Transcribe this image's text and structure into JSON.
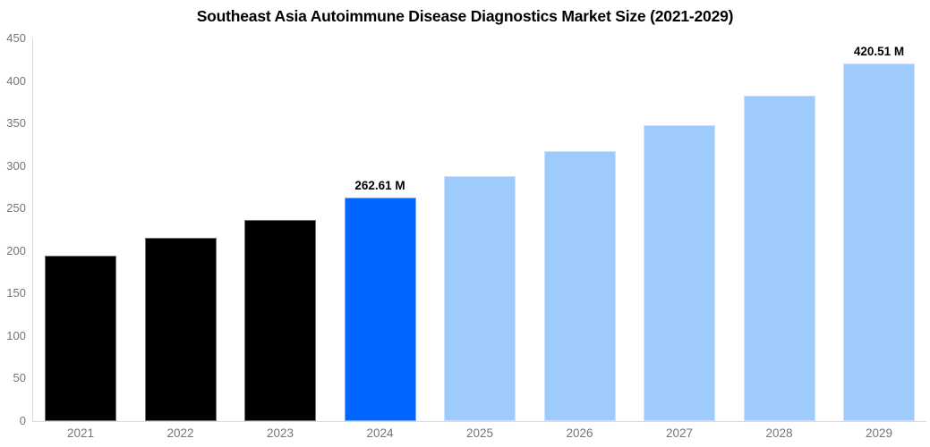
{
  "chart_data": {
    "type": "bar",
    "title": "Southeast Asia Autoimmune Disease Diagnostics Market Size (2021-2029)",
    "categories": [
      "2021",
      "2022",
      "2023",
      "2024",
      "2025",
      "2026",
      "2027",
      "2028",
      "2029"
    ],
    "values": [
      194,
      216,
      237,
      262.61,
      288,
      317,
      348,
      383,
      420.51
    ],
    "data_labels": [
      "",
      "",
      "",
      "262.61 M",
      "",
      "",
      "",
      "",
      "420.51 M"
    ],
    "bar_colors": [
      "#000000",
      "#000000",
      "#000000",
      "#0066FF",
      "#9ECBFC",
      "#9ECBFC",
      "#9ECBFC",
      "#9ECBFC",
      "#9ECBFC"
    ],
    "xlabel": "",
    "ylabel": "",
    "ylim": [
      0,
      450
    ],
    "yticks": [
      0,
      50,
      100,
      150,
      200,
      250,
      300,
      350,
      400,
      450
    ],
    "grid": false,
    "legend": false,
    "colors": {
      "background": "#FFFFFF",
      "axis_line": "#DADADA",
      "tick_label": "#757575",
      "title": "#000000",
      "data_label": "#000000",
      "highlight_bar": "#0066FF",
      "forecast_bar": "#9ECBFC",
      "historical_bar": "#000000"
    }
  }
}
